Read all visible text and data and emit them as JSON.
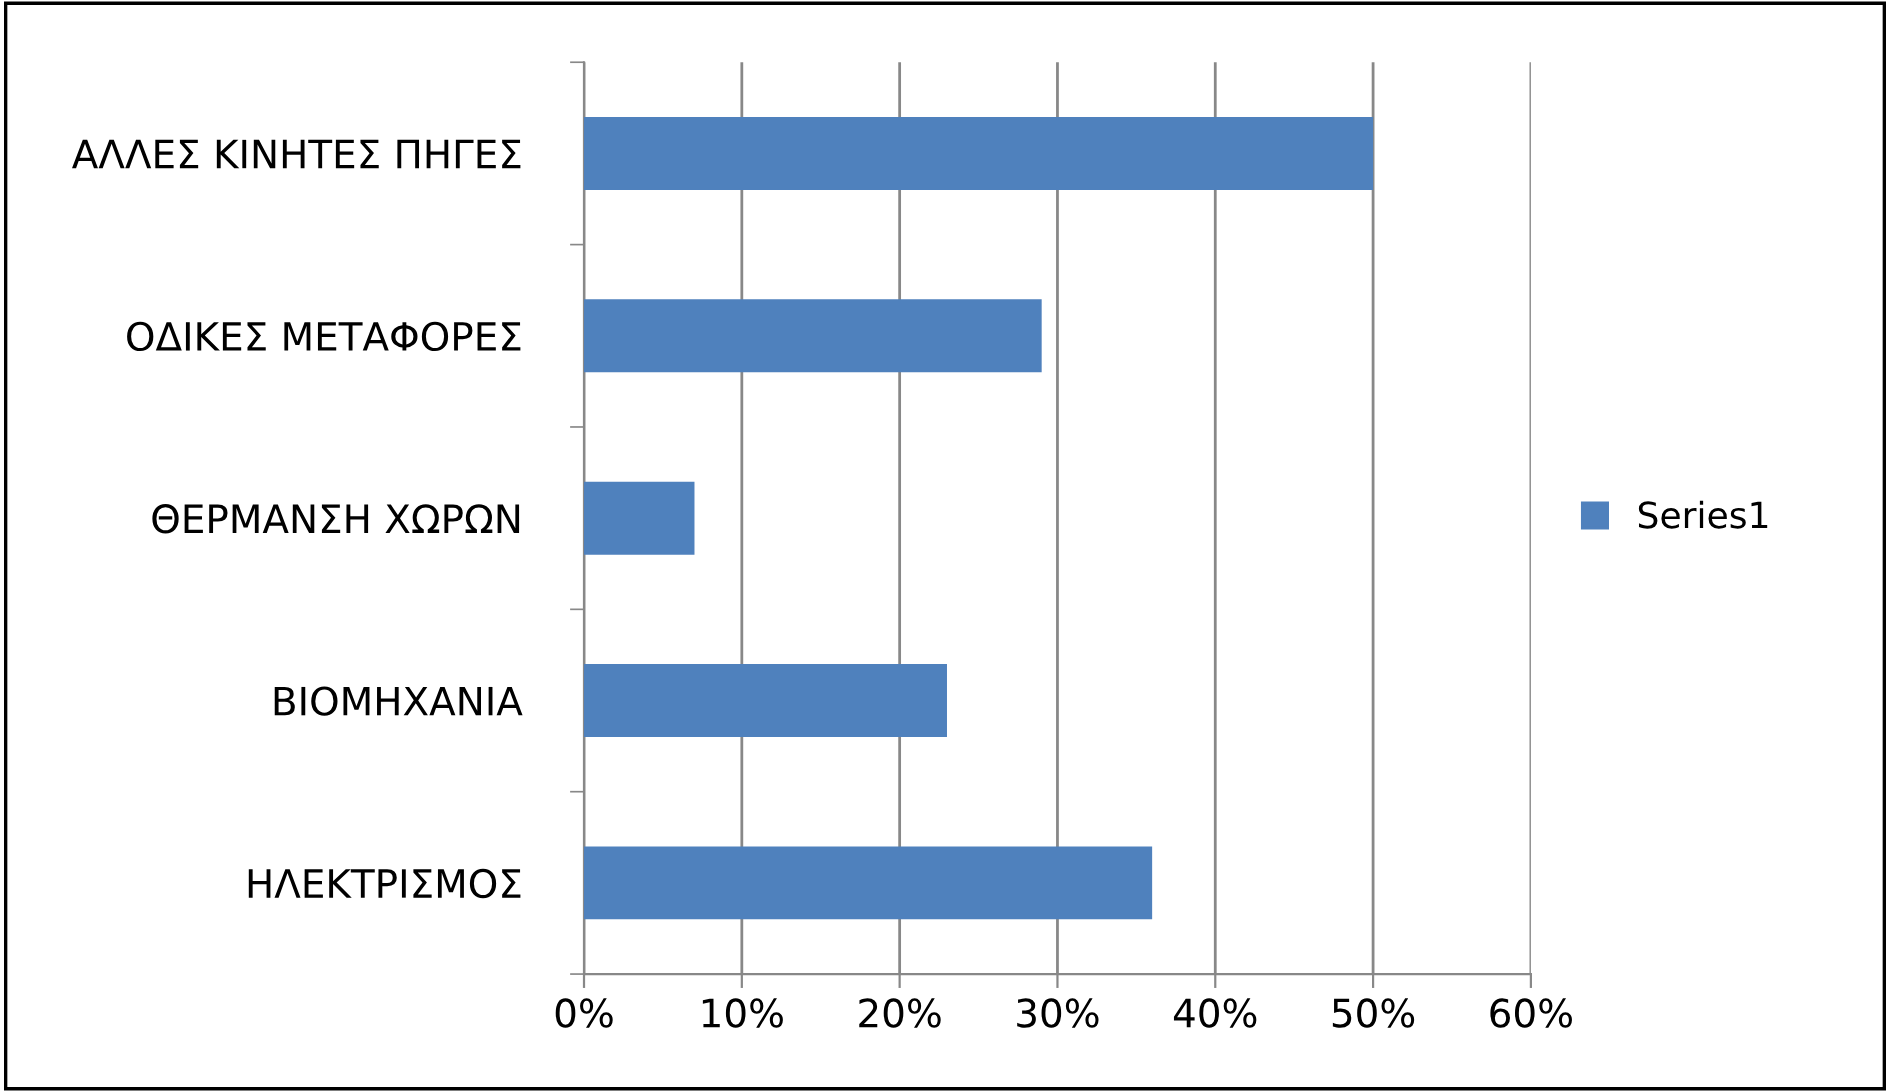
{
  "chart_data": {
    "type": "bar",
    "orientation": "horizontal",
    "categories": [
      "ΑΛΛΕΣ ΚΙΝΗΤΕΣ ΠΗΓΕΣ",
      "ΟΔΙΚΕΣ ΜΕΤΑΦΟΡΕΣ",
      "ΘΕΡΜΑΝΣΗ ΧΩΡΩΝ",
      "ΒΙΟΜΗΧΑΝΙΑ",
      "ΗΛΕΚΤΡΙΣΜΟΣ"
    ],
    "series": [
      {
        "name": "Series1",
        "color": "#4f81bd",
        "values": [
          50,
          29,
          7,
          23,
          36
        ]
      }
    ],
    "xlim": [
      0,
      60
    ],
    "xticks": [
      {
        "value": 0,
        "label": "0%"
      },
      {
        "value": 10,
        "label": "10%"
      },
      {
        "value": 20,
        "label": "20%"
      },
      {
        "value": 30,
        "label": "30%"
      },
      {
        "value": 40,
        "label": "40%"
      },
      {
        "value": 50,
        "label": "50%"
      },
      {
        "value": 60,
        "label": "60%"
      }
    ],
    "grid": "x",
    "legend": "right"
  }
}
